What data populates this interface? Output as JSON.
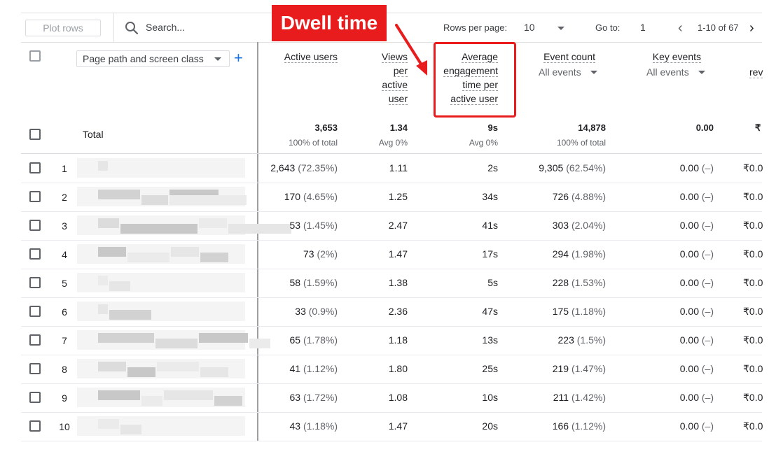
{
  "toolbar": {
    "plot_rows_label": "Plot rows",
    "search_placeholder": "Search...",
    "rows_per_page_label": "Rows per page:",
    "rows_per_page_value": "10",
    "goto_label": "Go to:",
    "goto_value": "1",
    "range_text": "1-10 of 67"
  },
  "annotation": {
    "label": "Dwell time",
    "color": "#e81c1c"
  },
  "dimension": {
    "selector_label": "Page path and screen class"
  },
  "columns": {
    "active_users": "Active users",
    "views_per_active_user": [
      "Views",
      "per",
      "active",
      "user"
    ],
    "avg_engagement": [
      "Average",
      "engagement",
      "time per",
      "active user"
    ],
    "event_count": "Event count",
    "event_count_sub": "All events",
    "key_events": "Key events",
    "key_events_sub": "All events",
    "revenue_partial": "rev"
  },
  "totals": {
    "label": "Total",
    "active_users": "3,653",
    "active_users_sub": "100% of total",
    "views_per_user": "1.34",
    "views_per_user_sub": "Avg 0%",
    "avg_engagement": "9s",
    "avg_engagement_sub": "Avg 0%",
    "event_count": "14,878",
    "event_count_sub": "100% of total",
    "key_events": "0.00",
    "revenue": "₹"
  },
  "rows": [
    {
      "index": "1",
      "active_users": "2,643",
      "active_pct": "(72.35%)",
      "views": "1.11",
      "engagement": "2s",
      "events": "9,305",
      "events_pct": "(62.54%)",
      "key_events": "0.00",
      "key_pct": "(–)",
      "revenue": "₹0.0"
    },
    {
      "index": "2",
      "active_users": "170",
      "active_pct": "(4.65%)",
      "views": "1.25",
      "engagement": "34s",
      "events": "726",
      "events_pct": "(4.88%)",
      "key_events": "0.00",
      "key_pct": "(–)",
      "revenue": "₹0.0"
    },
    {
      "index": "3",
      "active_users": "53",
      "active_pct": "(1.45%)",
      "views": "2.47",
      "engagement": "41s",
      "events": "303",
      "events_pct": "(2.04%)",
      "key_events": "0.00",
      "key_pct": "(–)",
      "revenue": "₹0.0"
    },
    {
      "index": "4",
      "active_users": "73",
      "active_pct": "(2%)",
      "views": "1.47",
      "engagement": "17s",
      "events": "294",
      "events_pct": "(1.98%)",
      "key_events": "0.00",
      "key_pct": "(–)",
      "revenue": "₹0.0"
    },
    {
      "index": "5",
      "active_users": "58",
      "active_pct": "(1.59%)",
      "views": "1.38",
      "engagement": "5s",
      "events": "228",
      "events_pct": "(1.53%)",
      "key_events": "0.00",
      "key_pct": "(–)",
      "revenue": "₹0.0"
    },
    {
      "index": "6",
      "active_users": "33",
      "active_pct": "(0.9%)",
      "views": "2.36",
      "engagement": "47s",
      "events": "175",
      "events_pct": "(1.18%)",
      "key_events": "0.00",
      "key_pct": "(–)",
      "revenue": "₹0.0"
    },
    {
      "index": "7",
      "active_users": "65",
      "active_pct": "(1.78%)",
      "views": "1.18",
      "engagement": "13s",
      "events": "223",
      "events_pct": "(1.5%)",
      "key_events": "0.00",
      "key_pct": "(–)",
      "revenue": "₹0.0"
    },
    {
      "index": "8",
      "active_users": "41",
      "active_pct": "(1.12%)",
      "views": "1.80",
      "engagement": "25s",
      "events": "219",
      "events_pct": "(1.47%)",
      "key_events": "0.00",
      "key_pct": "(–)",
      "revenue": "₹0.0"
    },
    {
      "index": "9",
      "active_users": "63",
      "active_pct": "(1.72%)",
      "views": "1.08",
      "engagement": "10s",
      "events": "211",
      "events_pct": "(1.42%)",
      "key_events": "0.00",
      "key_pct": "(–)",
      "revenue": "₹0.0"
    },
    {
      "index": "10",
      "active_users": "43",
      "active_pct": "(1.18%)",
      "views": "1.47",
      "engagement": "20s",
      "events": "166",
      "events_pct": "(1.12%)",
      "key_events": "0.00",
      "key_pct": "(–)",
      "revenue": "₹0.0"
    }
  ]
}
